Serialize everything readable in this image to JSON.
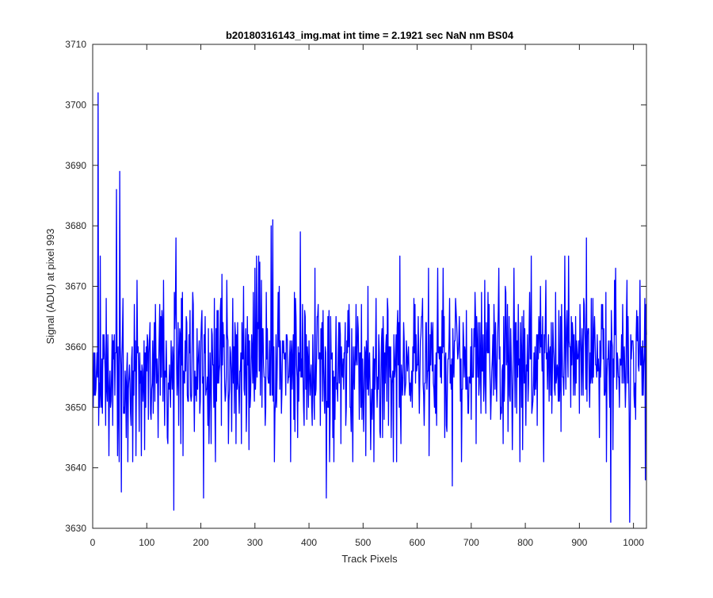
{
  "chart_data": {
    "type": "line",
    "title": "b20180316143_img.mat int time = 2.1921 sec  NaN nm BS04",
    "xlabel": "Track Pixels",
    "ylabel": "Signal (ADU) at pixel 993",
    "xlim": [
      0,
      1024
    ],
    "ylim": [
      3630,
      3710
    ],
    "xticks": [
      0,
      100,
      200,
      300,
      400,
      500,
      600,
      700,
      800,
      900,
      1000
    ],
    "yticks": [
      3630,
      3640,
      3650,
      3660,
      3670,
      3680,
      3690,
      3700,
      3710
    ],
    "grid": false,
    "series": [
      {
        "color": "#0000ff",
        "x_start": 1,
        "x_step": 1,
        "y_mean": 3657,
        "y_std": 7,
        "num_points": 1024,
        "notable_points": [
          {
            "x": 10,
            "y": 3702
          },
          {
            "x": 44,
            "y": 3686
          },
          {
            "x": 50,
            "y": 3689
          },
          {
            "x": 53,
            "y": 3636
          },
          {
            "x": 150,
            "y": 3633
          },
          {
            "x": 154,
            "y": 3678
          },
          {
            "x": 205,
            "y": 3635
          },
          {
            "x": 330,
            "y": 3680
          },
          {
            "x": 333,
            "y": 3681
          },
          {
            "x": 384,
            "y": 3679
          },
          {
            "x": 432,
            "y": 3635
          },
          {
            "x": 621,
            "y": 3673
          },
          {
            "x": 665,
            "y": 3637
          },
          {
            "x": 913,
            "y": 3678
          },
          {
            "x": 958,
            "y": 3631
          },
          {
            "x": 993,
            "y": 3631
          },
          {
            "x": 1022,
            "y": 3638
          }
        ]
      }
    ]
  }
}
